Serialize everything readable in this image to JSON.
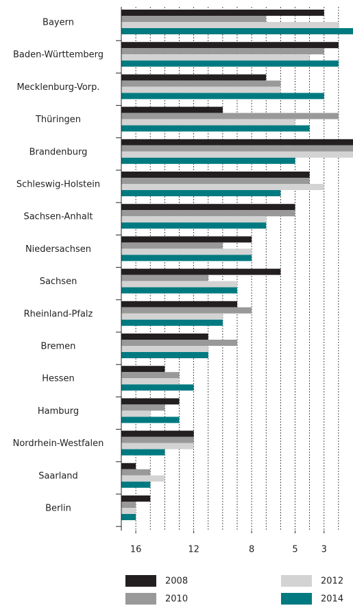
{
  "chart_data": {
    "type": "bar",
    "orientation": "horizontal",
    "categories": [
      "Bayern",
      "Baden-Württemberg",
      "Mecklenburg-Vorp.",
      "Thüringen",
      "Brandenburg",
      "Schleswig-Holstein",
      "Sachsen-Anhalt",
      "Niedersachsen",
      "Sachsen",
      "Rheinland-Pfalz",
      "Bremen",
      "Hessen",
      "Hamburg",
      "Nordrhein-Westfalen",
      "Saarland",
      "Berlin"
    ],
    "series": [
      {
        "name": "2008",
        "color": "#231f20",
        "values": [
          3,
          2,
          7,
          10,
          1,
          4,
          5,
          8,
          6,
          9,
          11,
          14,
          13,
          12,
          16,
          15
        ]
      },
      {
        "name": "2010",
        "color": "#999999",
        "values": [
          7,
          3,
          6,
          2,
          1,
          4,
          5,
          10,
          11,
          8,
          9,
          13,
          14,
          12,
          15,
          16
        ]
      },
      {
        "name": "2012",
        "color": "#d3d3d3",
        "values": [
          2,
          4,
          6,
          5,
          1,
          3,
          7,
          8,
          9,
          10,
          11,
          13,
          15,
          12,
          14,
          16
        ]
      },
      {
        "name": "2014",
        "color": "#007a80",
        "values": [
          1,
          2,
          3,
          4,
          5,
          6,
          7,
          8,
          9,
          10,
          11,
          12,
          13,
          14,
          15,
          16
        ]
      }
    ],
    "xlim": [
      17,
      1
    ],
    "xticks": [
      16,
      12,
      8,
      5,
      3
    ],
    "minor_xticks": [
      16,
      15,
      14,
      13,
      12,
      11,
      10,
      9,
      8,
      7,
      6,
      5,
      4,
      3,
      2
    ],
    "grid": true
  }
}
